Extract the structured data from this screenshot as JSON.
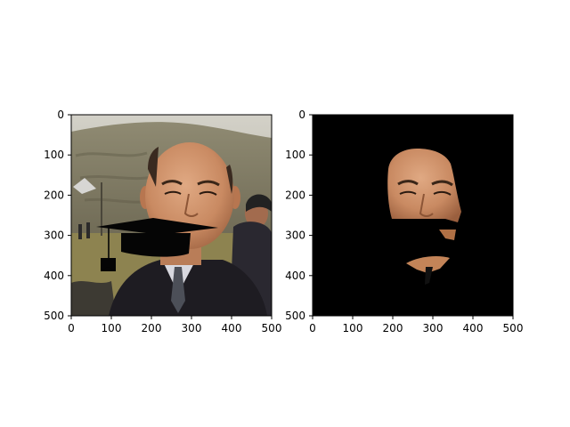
{
  "figure": {
    "background": "#ffffff",
    "panels": [
      {
        "name": "left",
        "content": "photo of a smiling bald man in a dark suit and tie, outdoors with hillside and crowd, with a black graduation mortarboard hat overlaid at mouth level with a tassel hanging left",
        "axes": {
          "x_ticks": [
            "0",
            "100",
            "200",
            "300",
            "400",
            "500"
          ],
          "y_ticks": [
            "0",
            "100",
            "200",
            "300",
            "400",
            "500"
          ],
          "xlim": [
            0,
            500
          ],
          "ylim": [
            500,
            0
          ]
        }
      },
      {
        "name": "right",
        "content": "segmentation mask on black background showing only the face region, cut by the hat shape",
        "axes": {
          "x_ticks": [
            "0",
            "100",
            "200",
            "300",
            "400",
            "500"
          ],
          "y_ticks": [
            "0",
            "100",
            "200",
            "300",
            "400",
            "500"
          ],
          "xlim": [
            0,
            500
          ],
          "ylim": [
            500,
            0
          ]
        }
      }
    ]
  },
  "colors": {
    "mask_background": "#000000",
    "skin": "#c98a62",
    "suit": "#1e1c22",
    "sky": "#c9c7bd",
    "hill": "#8a8468",
    "grass": "#8d8350"
  }
}
